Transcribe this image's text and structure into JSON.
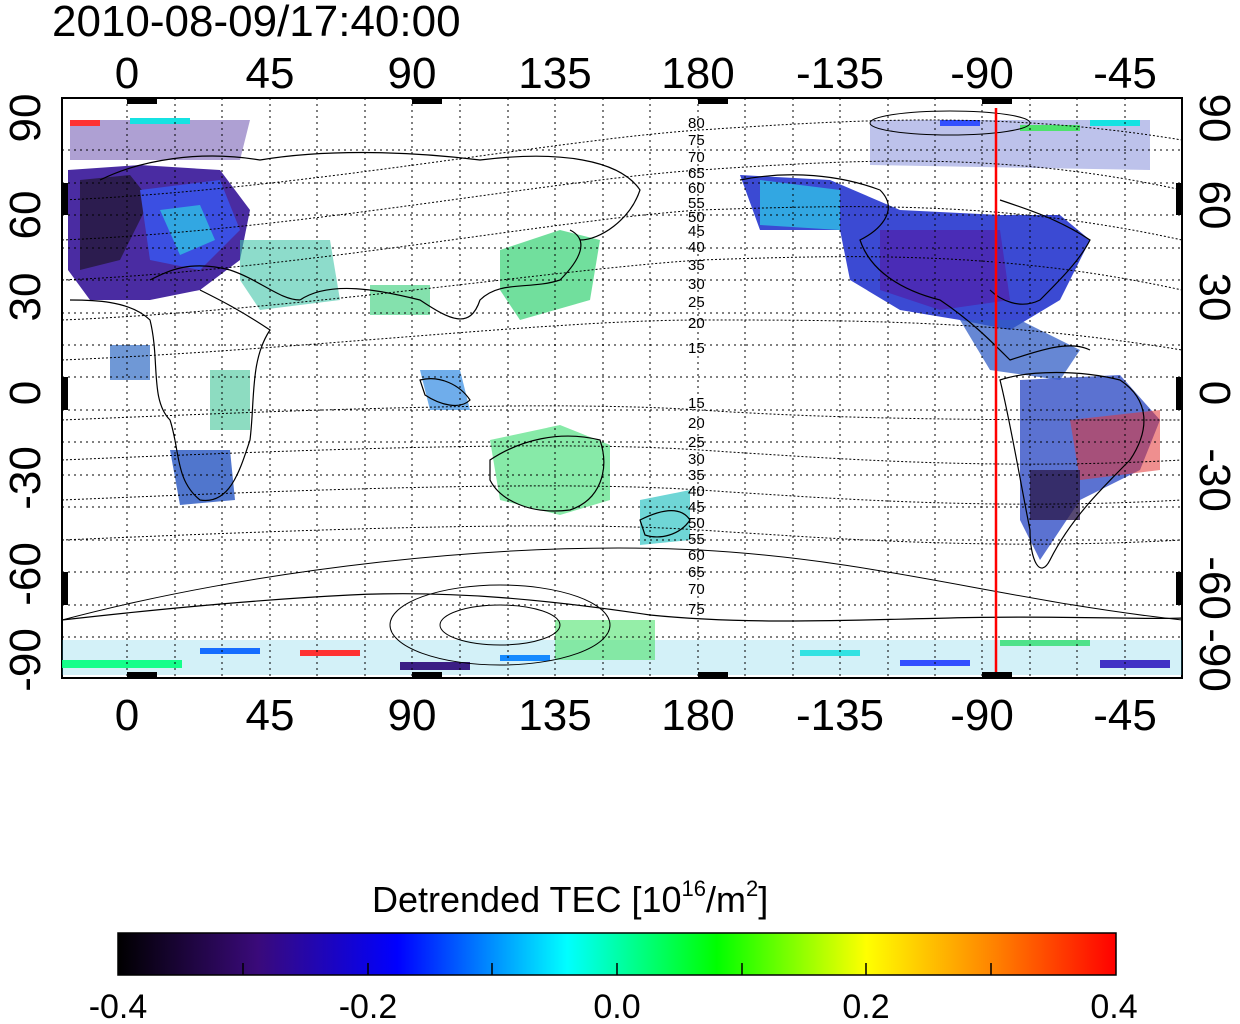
{
  "title": "2010-08-09/17:40:00",
  "map": {
    "lon_ticks": [
      "0",
      "45",
      "90",
      "135",
      "180",
      "-135",
      "-90",
      "-45"
    ],
    "lat_ticks_left": [
      "90",
      "60",
      "30",
      "0",
      "-30",
      "-60",
      "-90"
    ],
    "lat_ticks_right": [
      "90",
      "60",
      "30",
      "0",
      "-30",
      "-60",
      "-90"
    ],
    "terminator_color": "#ff0000",
    "contour_labels_north": [
      "80",
      "75",
      "70",
      "65",
      "60",
      "55",
      "50",
      "45",
      "40",
      "35",
      "30",
      "25",
      "20",
      "15"
    ],
    "contour_labels_south": [
      "15",
      "20",
      "25",
      "30",
      "35",
      "40",
      "45",
      "50",
      "55",
      "60",
      "65",
      "70",
      "75"
    ]
  },
  "colorbar": {
    "label_text": "Detrended TEC  [10",
    "label_sup1": "16",
    "label_mid": "/m",
    "label_sup2": "2",
    "label_end": "]",
    "ticks": [
      "-0.4",
      "-0.2",
      "0.0",
      "0.2",
      "0.4"
    ],
    "stops": [
      "#000000",
      "#3a0a7a",
      "#0000ff",
      "#00ffff",
      "#00ff00",
      "#ffff00",
      "#ff8000",
      "#ff0000"
    ]
  }
}
